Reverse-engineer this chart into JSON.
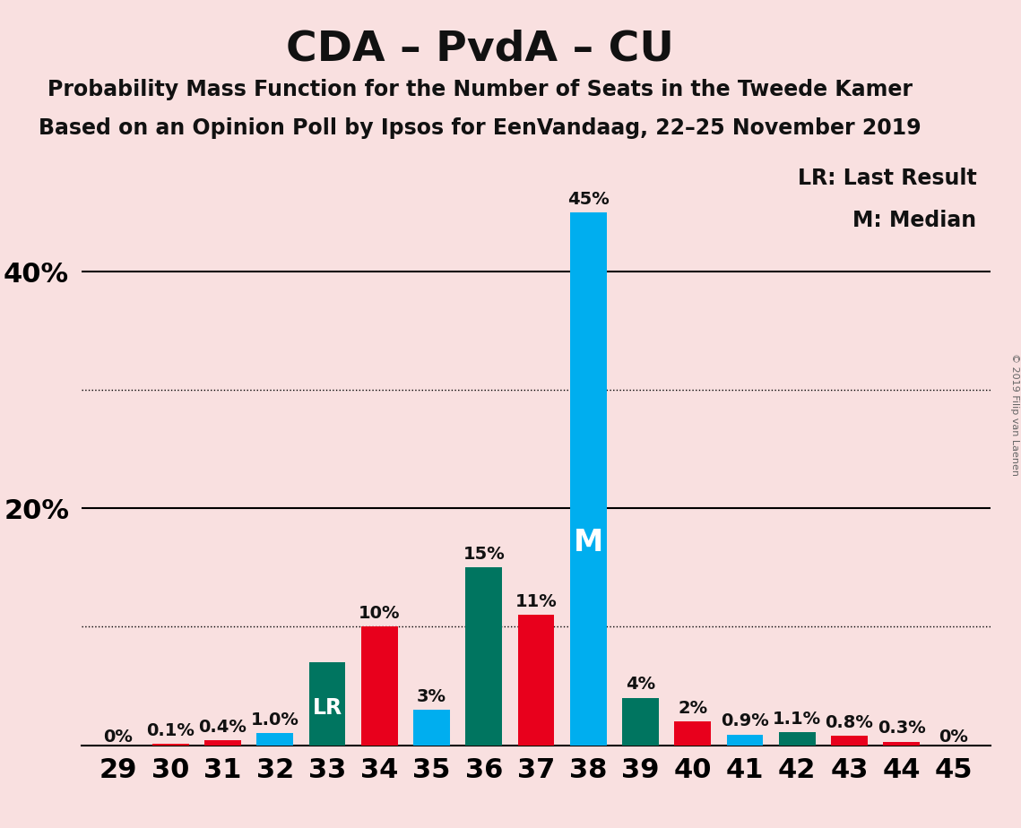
{
  "title": "CDA – PvdA – CU",
  "subtitle1": "Probability Mass Function for the Number of Seats in the Tweede Kamer",
  "subtitle2": "Based on an Opinion Poll by Ipsos for EenVandaag, 22–25 November 2019",
  "copyright": "© 2019 Filip van Laenen",
  "legend_lr": "LR: Last Result",
  "legend_m": "M: Median",
  "seats": [
    29,
    30,
    31,
    32,
    33,
    34,
    35,
    36,
    37,
    38,
    39,
    40,
    41,
    42,
    43,
    44,
    45
  ],
  "values": [
    0.0,
    0.1,
    0.4,
    1.0,
    7.0,
    10.0,
    3.0,
    15.0,
    11.0,
    45.0,
    4.0,
    2.0,
    0.9,
    1.1,
    0.8,
    0.3,
    0.0
  ],
  "colors": [
    "#F9E0E0",
    "#E8001C",
    "#E8001C",
    "#00AEEF",
    "#007560",
    "#E8001C",
    "#00AEEF",
    "#007560",
    "#E8001C",
    "#00AEEF",
    "#007560",
    "#E8001C",
    "#00AEEF",
    "#007560",
    "#E8001C",
    "#E8001C",
    "#F9E0E0"
  ],
  "bar_labels": [
    "0%",
    "0.1%",
    "0.4%",
    "1.0%",
    "LR",
    "10%",
    "3%",
    "15%",
    "11%",
    "45%",
    "4%",
    "2%",
    "0.9%",
    "1.1%",
    "0.8%",
    "0.3%",
    "0%"
  ],
  "label_inside": [
    false,
    false,
    false,
    false,
    true,
    false,
    false,
    false,
    false,
    false,
    false,
    false,
    false,
    false,
    false,
    false,
    false
  ],
  "median_bar_idx": 9,
  "median_label": "M",
  "background_color": "#F9E0E0",
  "bar_width": 0.7,
  "ylim": [
    0,
    50
  ],
  "dotted_lines": [
    10,
    30
  ],
  "solid_lines": [
    20,
    40
  ],
  "ytick_positions": [
    20,
    40
  ],
  "ytick_labels": [
    "20%",
    "40%"
  ],
  "title_fontsize": 34,
  "subtitle_fontsize": 17,
  "axis_label_fontsize": 22,
  "bar_label_fontsize": 14,
  "inside_label_fontsize": 17,
  "median_label_fontsize": 24
}
